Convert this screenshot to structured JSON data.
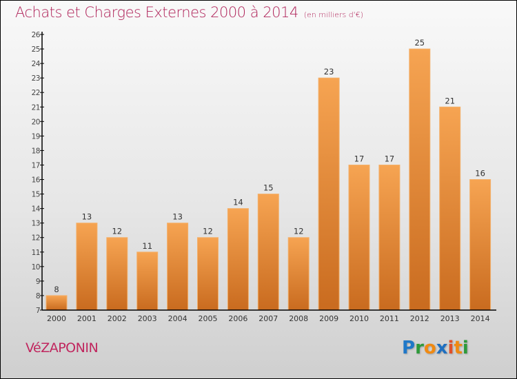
{
  "header": {
    "title": "Achats et Charges Externes 2000 à 2014",
    "subtitle": "(en milliers d'€)"
  },
  "footer": {
    "commune": "VéZAPONIN",
    "logo_letters": [
      {
        "ch": "P",
        "color": "#1f78c8"
      },
      {
        "ch": "r",
        "color": "#2e9a3a"
      },
      {
        "ch": "o",
        "color": "#f08a12"
      },
      {
        "ch": "x",
        "color": "#1f6fc0"
      },
      {
        "ch": "i",
        "color": "#e0502a"
      },
      {
        "ch": "t",
        "color": "#f08a12"
      },
      {
        "ch": "i",
        "color": "#2e9a3a"
      }
    ]
  },
  "colors": {
    "title": "#b0245a",
    "bar_top": "#f6a452",
    "bar_bottom": "#c96b1f",
    "bar_edge": "#f3b06a"
  },
  "chart_data": {
    "type": "bar",
    "title": "Achats et Charges Externes 2000 à 2014",
    "subtitle": "(en milliers d'€)",
    "xlabel": "",
    "ylabel": "",
    "categories": [
      "2000",
      "2001",
      "2002",
      "2003",
      "2004",
      "2005",
      "2006",
      "2007",
      "2008",
      "2009",
      "2010",
      "2011",
      "2012",
      "2013",
      "2014"
    ],
    "values": [
      8,
      13,
      12,
      11,
      13,
      12,
      14,
      15,
      12,
      23,
      17,
      17,
      25,
      21,
      16
    ],
    "data_labels": [
      "8",
      "13",
      "12",
      "11",
      "13",
      "12",
      "14",
      "15",
      "12",
      "23",
      "17",
      "17",
      "25",
      "21",
      "16"
    ],
    "ylim": [
      7,
      26
    ],
    "yticks": [
      7,
      8,
      9,
      10,
      11,
      12,
      13,
      14,
      15,
      16,
      17,
      18,
      19,
      20,
      21,
      22,
      23,
      24,
      25,
      26
    ],
    "grid": false,
    "legend": "none"
  }
}
